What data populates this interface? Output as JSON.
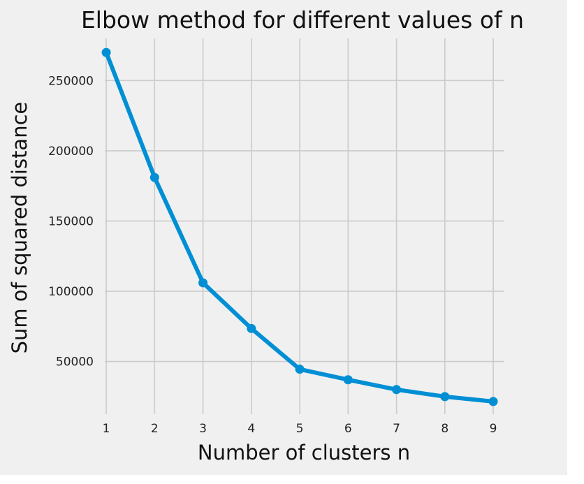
{
  "chart_data": {
    "type": "line",
    "title": "Elbow method for different values of n",
    "xlabel": "Number of clusters n",
    "ylabel": "Sum of squared distance",
    "x": [
      1,
      2,
      3,
      4,
      5,
      6,
      7,
      8,
      9
    ],
    "y": [
      270000,
      181000,
      106000,
      73500,
      44500,
      37000,
      30000,
      25000,
      21500
    ],
    "xlim": [
      0.97,
      9.23
    ],
    "ylim": [
      12500,
      280000
    ],
    "xticks": [
      "1",
      "2",
      "3",
      "4",
      "5",
      "6",
      "7",
      "8",
      "9"
    ],
    "yticks": [
      "50000",
      "100000",
      "150000",
      "200000",
      "250000"
    ],
    "ytick_values": [
      50000,
      100000,
      150000,
      200000,
      250000
    ],
    "grid": true,
    "line_color": "#008fd5",
    "background_color": "#f0f0f0",
    "grid_color": "#cbcbcb"
  }
}
